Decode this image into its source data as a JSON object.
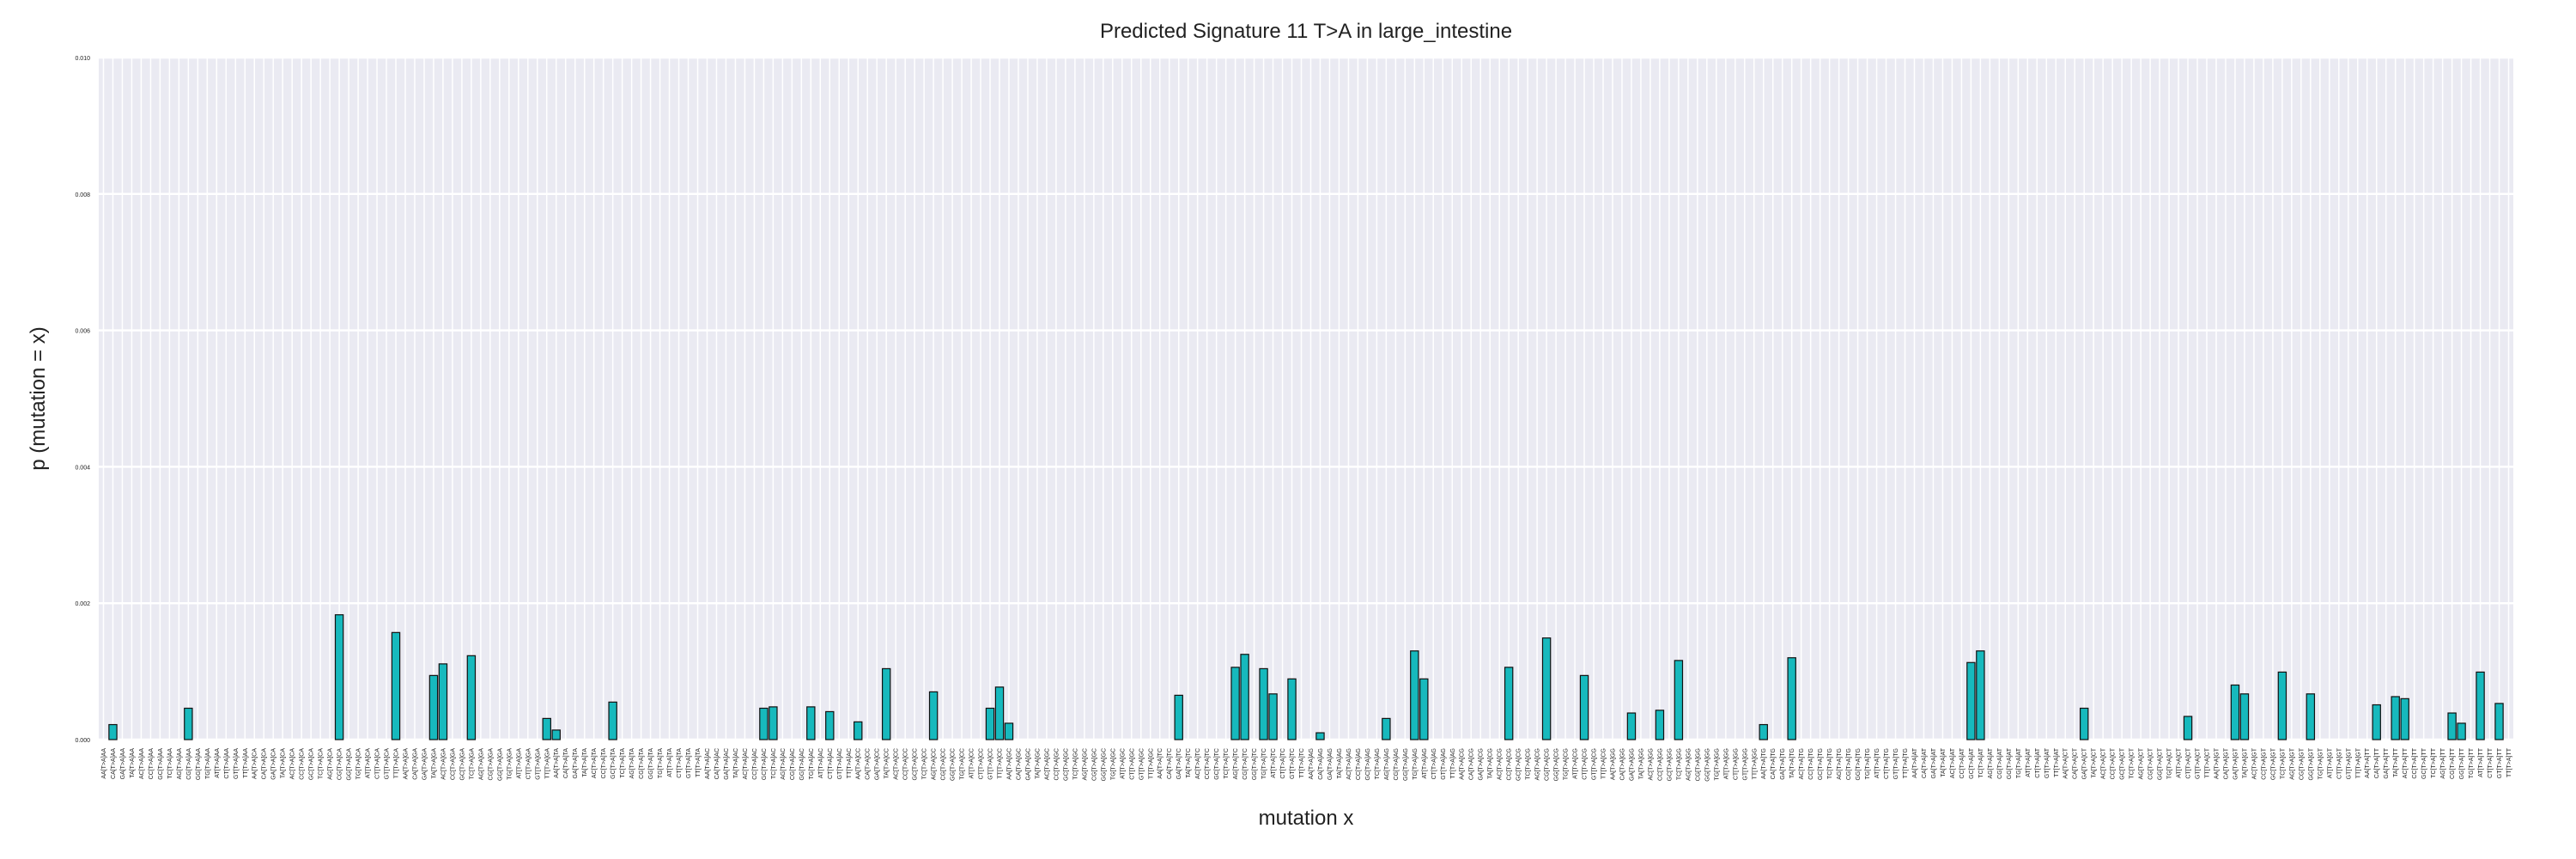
{
  "chart_data": {
    "type": "bar",
    "title": "Predicted Signature 11 T>A in large_intestine",
    "xlabel": "mutation x",
    "ylabel": "p (mutation = x)",
    "color": "#17b9bd",
    "edgecolor": "#111111",
    "grid": true,
    "ylim": [
      0,
      0.01
    ],
    "yticks": [
      {
        "value": 0,
        "label": "0.000"
      },
      {
        "value": 0.002,
        "label": "0.002"
      },
      {
        "value": 0.004,
        "label": "0.004"
      },
      {
        "value": 0.006,
        "label": "0.006"
      },
      {
        "value": 0.008,
        "label": "0.008"
      },
      {
        "value": 0.01,
        "label": "0.010"
      }
    ],
    "categories": [
      "AA[T>A]AA",
      "CA[T>A]AA",
      "GA[T>A]AA",
      "TA[T>A]AA",
      "AC[T>A]AA",
      "CC[T>A]AA",
      "GC[T>A]AA",
      "TC[T>A]AA",
      "AG[T>A]AA",
      "CG[T>A]AA",
      "GG[T>A]AA",
      "TG[T>A]AA",
      "AT[T>A]AA",
      "CT[T>A]AA",
      "GT[T>A]AA",
      "TT[T>A]AA",
      "AA[T>A]CA",
      "CA[T>A]CA",
      "GA[T>A]CA",
      "TA[T>A]CA",
      "AC[T>A]CA",
      "CC[T>A]CA",
      "GC[T>A]CA",
      "TC[T>A]CA",
      "AG[T>A]CA",
      "CG[T>A]CA",
      "GG[T>A]CA",
      "TG[T>A]CA",
      "AT[T>A]CA",
      "CT[T>A]CA",
      "GT[T>A]CA",
      "TT[T>A]CA",
      "AA[T>A]GA",
      "CA[T>A]GA",
      "GA[T>A]GA",
      "TA[T>A]GA",
      "AC[T>A]GA",
      "CC[T>A]GA",
      "GC[T>A]GA",
      "TC[T>A]GA",
      "AG[T>A]GA",
      "CG[T>A]GA",
      "GG[T>A]GA",
      "TG[T>A]GA",
      "AT[T>A]GA",
      "CT[T>A]GA",
      "GT[T>A]GA",
      "TT[T>A]GA",
      "AA[T>A]TA",
      "CA[T>A]TA",
      "GA[T>A]TA",
      "TA[T>A]TA",
      "AC[T>A]TA",
      "CC[T>A]TA",
      "GC[T>A]TA",
      "TC[T>A]TA",
      "AG[T>A]TA",
      "CG[T>A]TA",
      "GG[T>A]TA",
      "TG[T>A]TA",
      "AT[T>A]TA",
      "CT[T>A]TA",
      "GT[T>A]TA",
      "TT[T>A]TA",
      "AA[T>A]AC",
      "CA[T>A]AC",
      "GA[T>A]AC",
      "TA[T>A]AC",
      "AC[T>A]AC",
      "CC[T>A]AC",
      "GC[T>A]AC",
      "TC[T>A]AC",
      "AG[T>A]AC",
      "CG[T>A]AC",
      "GG[T>A]AC",
      "TG[T>A]AC",
      "AT[T>A]AC",
      "CT[T>A]AC",
      "GT[T>A]AC",
      "TT[T>A]AC",
      "AA[T>A]CC",
      "CA[T>A]CC",
      "GA[T>A]CC",
      "TA[T>A]CC",
      "AC[T>A]CC",
      "CC[T>A]CC",
      "GC[T>A]CC",
      "TC[T>A]CC",
      "AG[T>A]CC",
      "CG[T>A]CC",
      "GG[T>A]CC",
      "TG[T>A]CC",
      "AT[T>A]CC",
      "CT[T>A]CC",
      "GT[T>A]CC",
      "TT[T>A]CC",
      "AA[T>A]GC",
      "CA[T>A]GC",
      "GA[T>A]GC",
      "TA[T>A]GC",
      "AC[T>A]GC",
      "CC[T>A]GC",
      "GC[T>A]GC",
      "TC[T>A]GC",
      "AG[T>A]GC",
      "CG[T>A]GC",
      "GG[T>A]GC",
      "TG[T>A]GC",
      "AT[T>A]GC",
      "CT[T>A]GC",
      "GT[T>A]GC",
      "TT[T>A]GC",
      "AA[T>A]TC",
      "CA[T>A]TC",
      "GA[T>A]TC",
      "TA[T>A]TC",
      "AC[T>A]TC",
      "CC[T>A]TC",
      "GC[T>A]TC",
      "TC[T>A]TC",
      "AG[T>A]TC",
      "CG[T>A]TC",
      "GG[T>A]TC",
      "TG[T>A]TC",
      "AT[T>A]TC",
      "CT[T>A]TC",
      "GT[T>A]TC",
      "TT[T>A]TC",
      "AA[T>A]AG",
      "CA[T>A]AG",
      "GA[T>A]AG",
      "TA[T>A]AG",
      "AC[T>A]AG",
      "CC[T>A]AG",
      "GC[T>A]AG",
      "TC[T>A]AG",
      "AG[T>A]AG",
      "CG[T>A]AG",
      "GG[T>A]AG",
      "TG[T>A]AG",
      "AT[T>A]AG",
      "CT[T>A]AG",
      "GT[T>A]AG",
      "TT[T>A]AG",
      "AA[T>A]CG",
      "CA[T>A]CG",
      "GA[T>A]CG",
      "TA[T>A]CG",
      "AC[T>A]CG",
      "CC[T>A]CG",
      "GC[T>A]CG",
      "TC[T>A]CG",
      "AG[T>A]CG",
      "CG[T>A]CG",
      "GG[T>A]CG",
      "TG[T>A]CG",
      "AT[T>A]CG",
      "CT[T>A]CG",
      "GT[T>A]CG",
      "TT[T>A]CG",
      "AA[T>A]GG",
      "CA[T>A]GG",
      "GA[T>A]GG",
      "TA[T>A]GG",
      "AC[T>A]GG",
      "CC[T>A]GG",
      "GC[T>A]GG",
      "TC[T>A]GG",
      "AG[T>A]GG",
      "CG[T>A]GG",
      "GG[T>A]GG",
      "TG[T>A]GG",
      "AT[T>A]GG",
      "CT[T>A]GG",
      "GT[T>A]GG",
      "TT[T>A]GG",
      "AA[T>A]TG",
      "CA[T>A]TG",
      "GA[T>A]TG",
      "TA[T>A]TG",
      "AC[T>A]TG",
      "CC[T>A]TG",
      "GC[T>A]TG",
      "TC[T>A]TG",
      "AG[T>A]TG",
      "CG[T>A]TG",
      "GG[T>A]TG",
      "TG[T>A]TG",
      "AT[T>A]TG",
      "CT[T>A]TG",
      "GT[T>A]TG",
      "TT[T>A]TG",
      "AA[T>A]AT",
      "CA[T>A]AT",
      "GA[T>A]AT",
      "TA[T>A]AT",
      "AC[T>A]AT",
      "CC[T>A]AT",
      "GC[T>A]AT",
      "TC[T>A]AT",
      "AG[T>A]AT",
      "CG[T>A]AT",
      "GG[T>A]AT",
      "TG[T>A]AT",
      "AT[T>A]AT",
      "CT[T>A]AT",
      "GT[T>A]AT",
      "TT[T>A]AT",
      "AA[T>A]CT",
      "CA[T>A]CT",
      "GA[T>A]CT",
      "TA[T>A]CT",
      "AC[T>A]CT",
      "CC[T>A]CT",
      "GC[T>A]CT",
      "TC[T>A]CT",
      "AG[T>A]CT",
      "CG[T>A]CT",
      "GG[T>A]CT",
      "TG[T>A]CT",
      "AT[T>A]CT",
      "CT[T>A]CT",
      "GT[T>A]CT",
      "TT[T>A]CT",
      "AA[T>A]GT",
      "CA[T>A]GT",
      "GA[T>A]GT",
      "TA[T>A]GT",
      "AC[T>A]GT",
      "CC[T>A]GT",
      "GC[T>A]GT",
      "TC[T>A]GT",
      "AG[T>A]GT",
      "CG[T>A]GT",
      "GG[T>A]GT",
      "TG[T>A]GT",
      "AT[T>A]GT",
      "CT[T>A]GT",
      "GT[T>A]GT",
      "TT[T>A]GT",
      "AA[T>A]TT",
      "CA[T>A]TT",
      "GA[T>A]TT",
      "TA[T>A]TT",
      "AC[T>A]TT",
      "CC[T>A]TT",
      "GC[T>A]TT",
      "TC[T>A]TT",
      "AG[T>A]TT",
      "CG[T>A]TT",
      "GG[T>A]TT",
      "TG[T>A]TT",
      "AT[T>A]TT",
      "CT[T>A]TT",
      "GT[T>A]TT",
      "TT[T>A]TT"
    ],
    "values": [
      0,
      0.00022,
      0,
      0,
      0,
      0,
      0,
      0,
      0,
      0.00046,
      0,
      0,
      0,
      0,
      0,
      0,
      0,
      0,
      0,
      0,
      0,
      0,
      0,
      0,
      0,
      0.00183,
      0,
      0,
      0,
      0,
      0,
      0.00157,
      0,
      0,
      0,
      0.00094,
      0.00111,
      0,
      0,
      0.00123,
      0,
      0,
      0,
      0,
      0,
      0,
      0,
      0.00031,
      0.00014,
      0,
      0,
      0,
      0,
      0,
      0.00055,
      0,
      0,
      0,
      0,
      0,
      0,
      0,
      0,
      0,
      0,
      0,
      0,
      0,
      0,
      0,
      0.00046,
      0.00048,
      0,
      0,
      0,
      0.00048,
      0,
      0.00041,
      0,
      0,
      0.00026,
      0,
      0,
      0.00104,
      0,
      0,
      0,
      0,
      0.0007,
      0,
      0,
      0,
      0,
      0,
      0.00046,
      0.00077,
      0.00024,
      0,
      0,
      0,
      0,
      0,
      0,
      0,
      0,
      0,
      0,
      0,
      0,
      0,
      0,
      0,
      0,
      0,
      0.00065,
      0,
      0,
      0,
      0,
      0,
      0.00106,
      0.00125,
      0,
      0.00104,
      0.00067,
      0,
      0.00089,
      0,
      0,
      0.0001,
      0,
      0,
      0,
      0,
      0,
      0,
      0.00031,
      0,
      0,
      0.0013,
      0.00089,
      0,
      0,
      0,
      0,
      0,
      0,
      0,
      0,
      0.00106,
      0,
      0,
      0,
      0.00149,
      0,
      0,
      0,
      0.00094,
      0,
      0,
      0,
      0,
      0.00039,
      0,
      0,
      0.00043,
      0,
      0.00116,
      0,
      0,
      0,
      0,
      0,
      0,
      0,
      0,
      0.00022,
      0,
      0,
      0.0012,
      0,
      0,
      0,
      0,
      0,
      0,
      0,
      0,
      0,
      0,
      0,
      0,
      0,
      0,
      0,
      0,
      0,
      0,
      0.00113,
      0.0013,
      0,
      0,
      0,
      0,
      0,
      0,
      0,
      0,
      0,
      0,
      0.00046,
      0,
      0,
      0,
      0,
      0,
      0,
      0,
      0,
      0,
      0,
      0.00034,
      0,
      0,
      0,
      0,
      0.0008,
      0.00067,
      0,
      0,
      0,
      0.00099,
      0,
      0,
      0.00067,
      0,
      0,
      0,
      0,
      0,
      0,
      0.00051,
      0,
      0.00063,
      0.0006,
      0,
      0,
      0,
      0,
      0.00039,
      0.00024,
      0,
      0.00099,
      0,
      0.00053,
      0
    ]
  }
}
